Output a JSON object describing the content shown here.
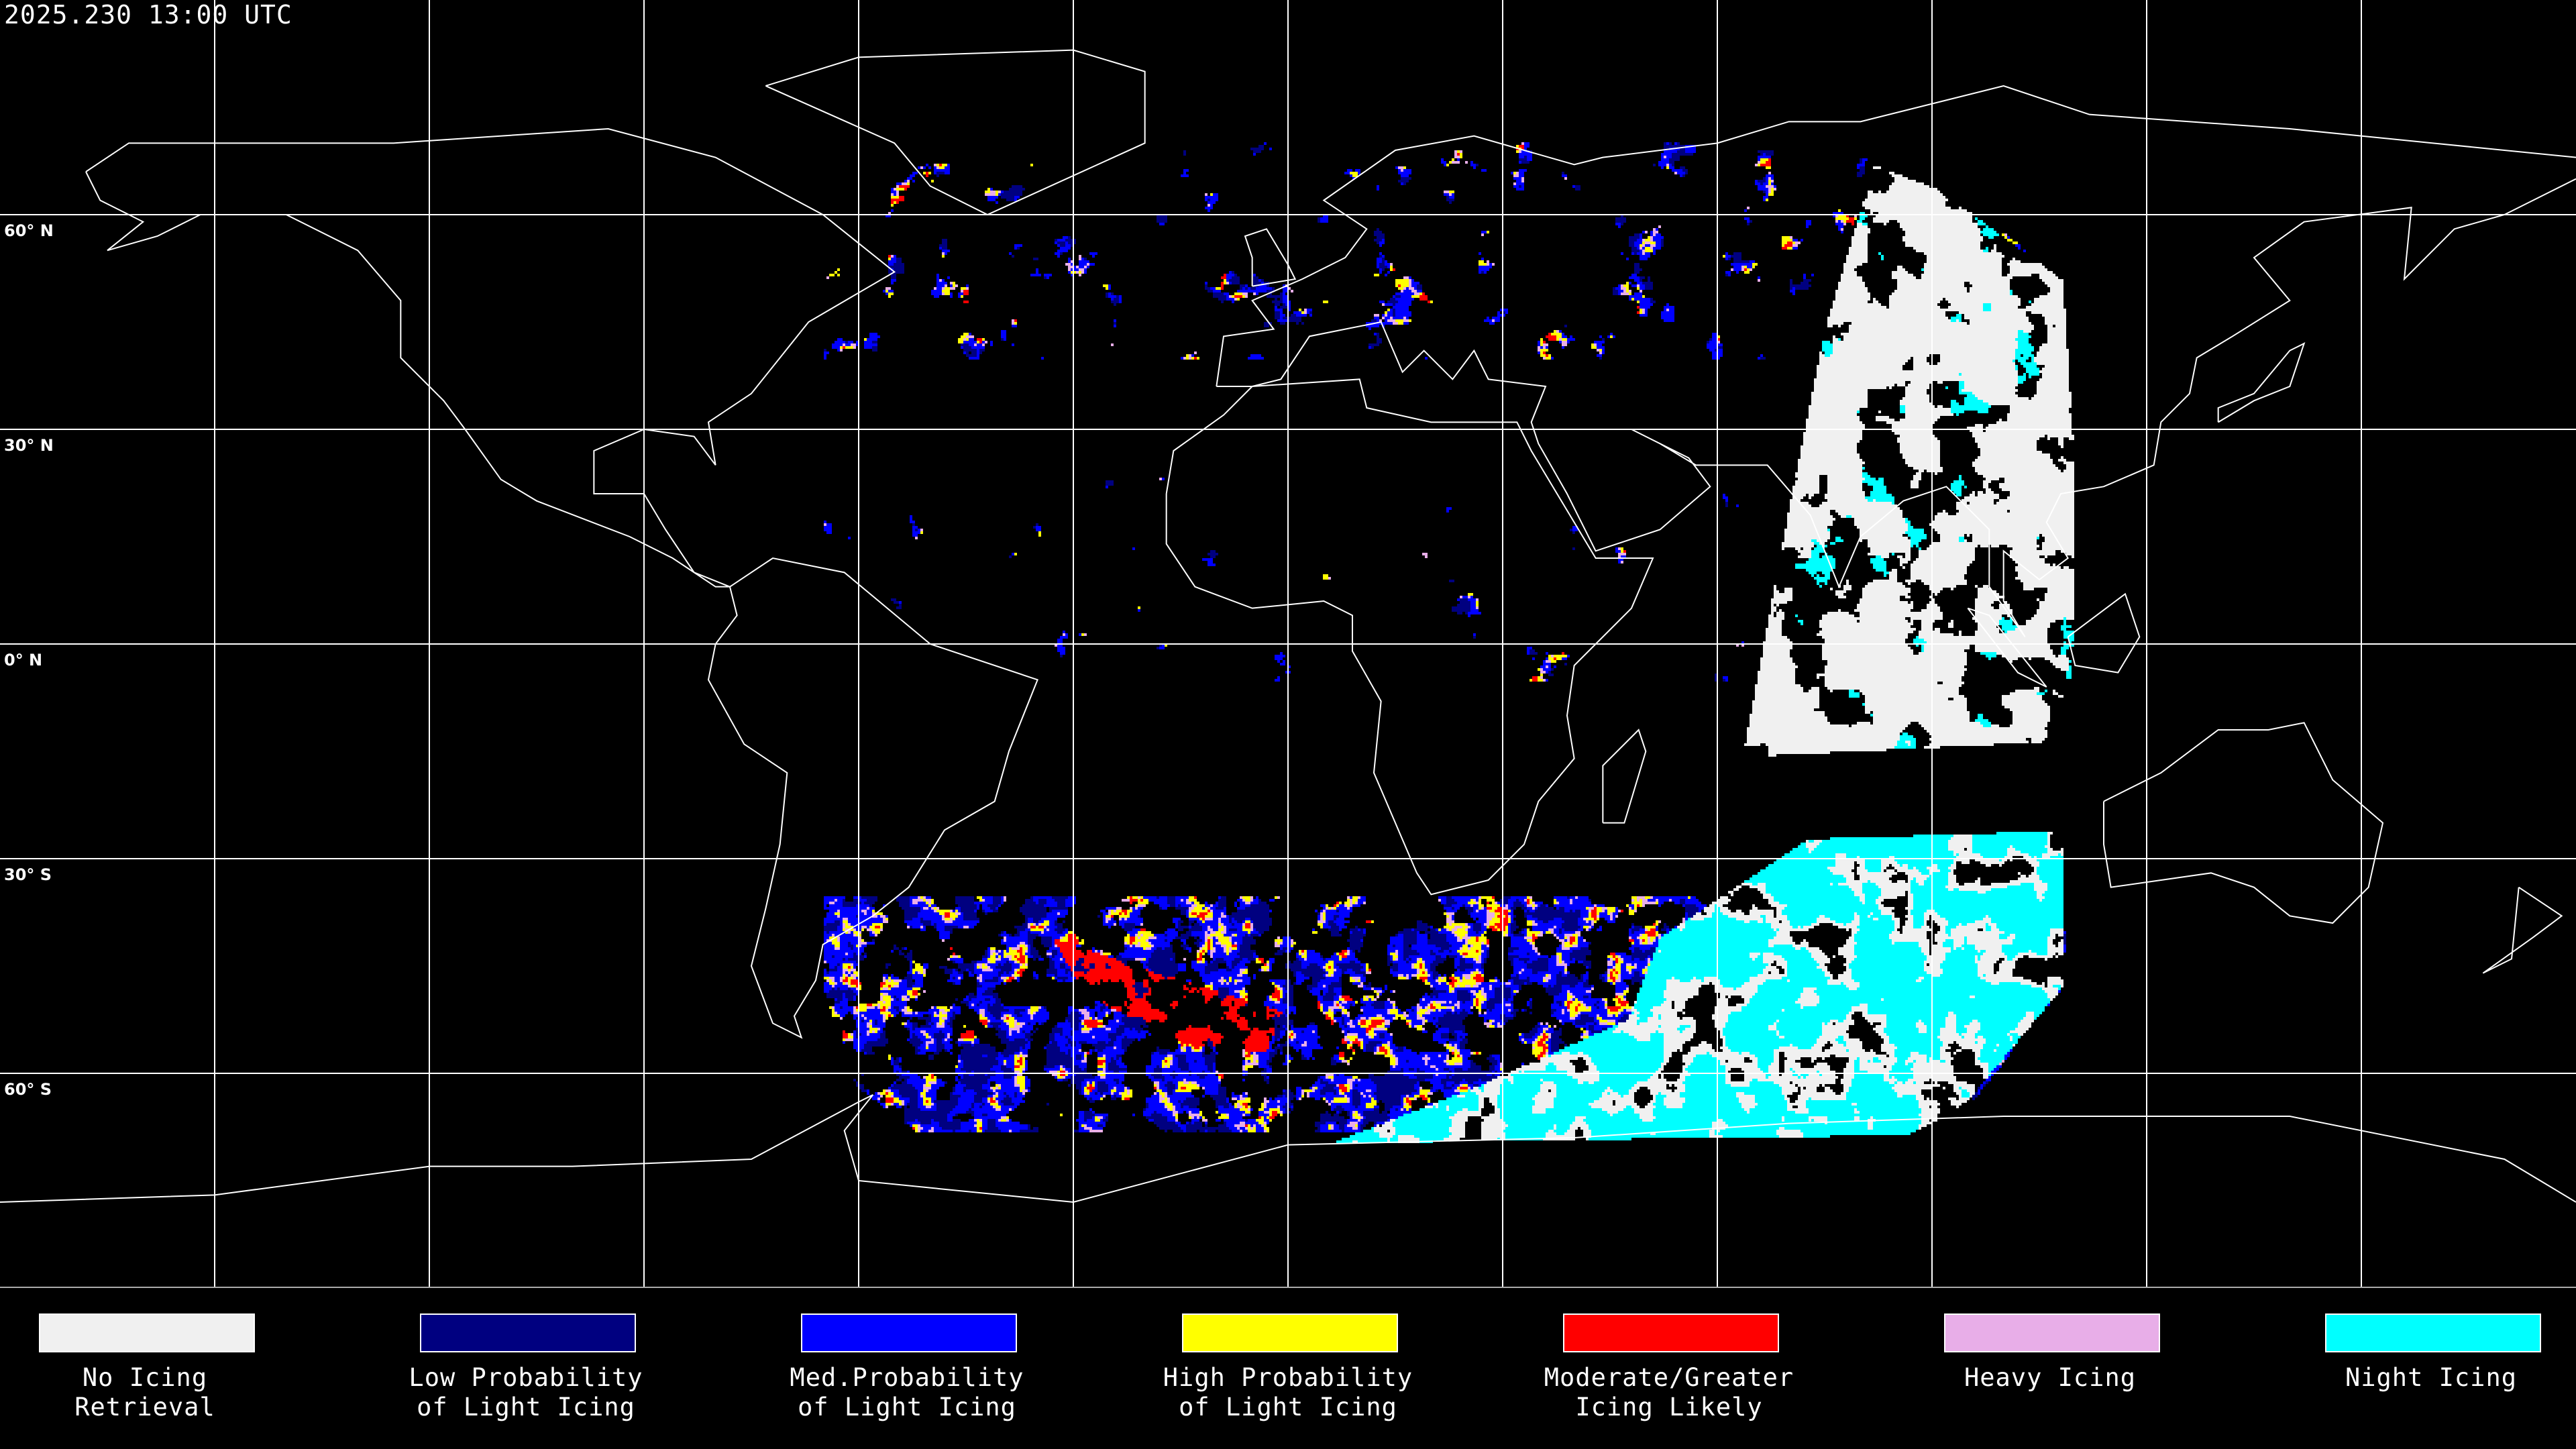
{
  "header": {
    "timestamp": "2025.230 13:00 UTC"
  },
  "map": {
    "projection": "equirectangular",
    "grid_spacing_degrees": 30,
    "lat_labels": [
      "60° N",
      "30° N",
      "0° N",
      "30° S",
      "60° S"
    ],
    "background_color": "#000000",
    "coastline_color": "#ffffff",
    "grid_color": "#ffffff"
  },
  "legend": {
    "items": [
      {
        "line1": "No Icing",
        "line2": "Retrieval",
        "color": "#f0f0f0"
      },
      {
        "line1": "Low Probability",
        "line2": "of Light Icing",
        "color": "#000080"
      },
      {
        "line1": "Med.Probability",
        "line2": "of Light Icing",
        "color": "#0000ff"
      },
      {
        "line1": "High Probability",
        "line2": "of Light Icing",
        "color": "#ffff00"
      },
      {
        "line1": "Moderate/Greater",
        "line2": "Icing Likely",
        "color": "#ff0000"
      },
      {
        "line1": "Heavy Icing",
        "line2": "",
        "color": "#e8aee8"
      },
      {
        "line1": "Night Icing",
        "line2": "",
        "color": "#00ffff"
      }
    ]
  }
}
